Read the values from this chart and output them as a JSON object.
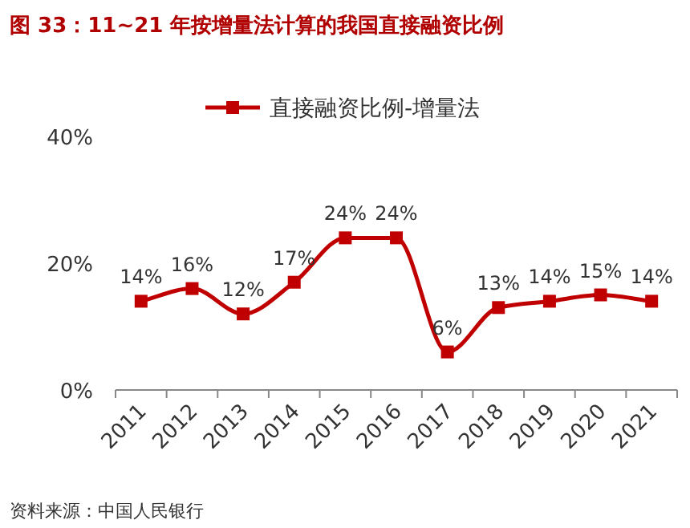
{
  "chart_data": {
    "type": "line",
    "title": "图 33：11~21 年按增量法计算的我国直接融资比例",
    "categories": [
      "2011",
      "2012",
      "2013",
      "2014",
      "2015",
      "2016",
      "2017",
      "2018",
      "2019",
      "2020",
      "2021"
    ],
    "series": [
      {
        "name": "直接融资比例-增量法",
        "color": "#c00000",
        "values": [
          14,
          16,
          12,
          17,
          24,
          24,
          6,
          13,
          14,
          15,
          14
        ]
      }
    ],
    "value_labels": [
      "14%",
      "16%",
      "12%",
      "17%",
      "24%",
      "24%",
      "6%",
      "13%",
      "14%",
      "15%",
      "14%"
    ],
    "ylim": [
      0,
      40
    ],
    "yticks": [
      {
        "value": 0,
        "label": "0%"
      },
      {
        "value": 20,
        "label": "20%"
      },
      {
        "value": 40,
        "label": "40%"
      }
    ],
    "marker": "square",
    "line_style": "solid",
    "legend": "top",
    "grid": false,
    "annotations": [
      "资料来源：中国人民银行"
    ]
  }
}
